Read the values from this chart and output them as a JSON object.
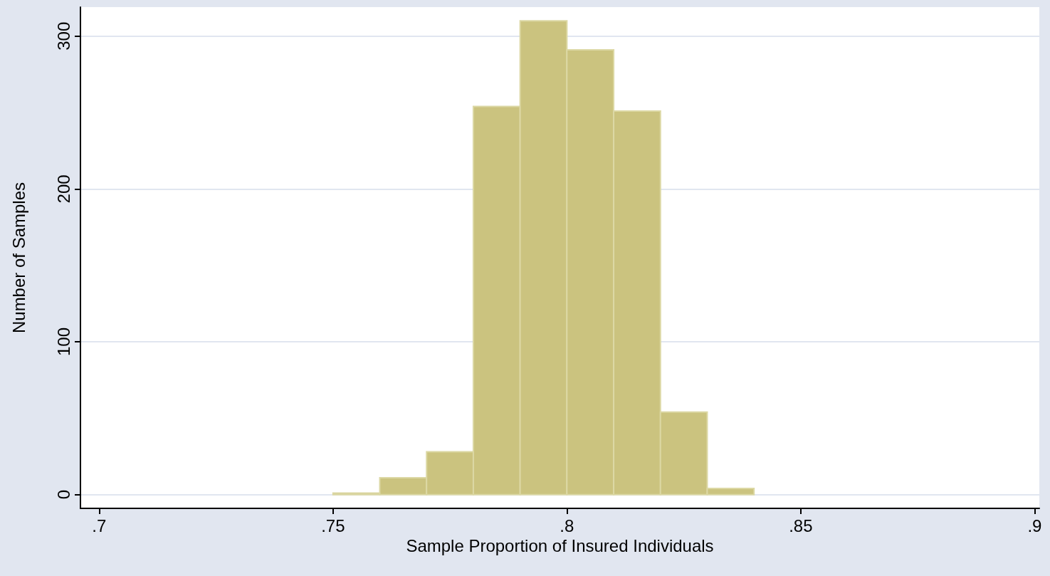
{
  "chart_data": {
    "type": "histogram",
    "xlabel": "Sample Proportion of Insured Individuals",
    "ylabel": "Number of Samples",
    "bins": [
      0.75,
      0.76,
      0.77,
      0.78,
      0.79,
      0.8,
      0.81,
      0.82,
      0.83,
      0.84
    ],
    "values": [
      1,
      11,
      28,
      254,
      310,
      291,
      251,
      54,
      4
    ],
    "color": "#cbc37f",
    "xlim": [
      0.696,
      0.901
    ],
    "xticks": [
      {
        "value": 0.7,
        "label": ".7"
      },
      {
        "value": 0.75,
        "label": ".75"
      },
      {
        "value": 0.8,
        "label": ".8"
      },
      {
        "value": 0.85,
        "label": ".85"
      },
      {
        "value": 0.9,
        "label": ".9"
      }
    ],
    "ylim": [
      -9,
      319
    ],
    "yticks": [
      0,
      100,
      200,
      300
    ],
    "grid": "y"
  }
}
